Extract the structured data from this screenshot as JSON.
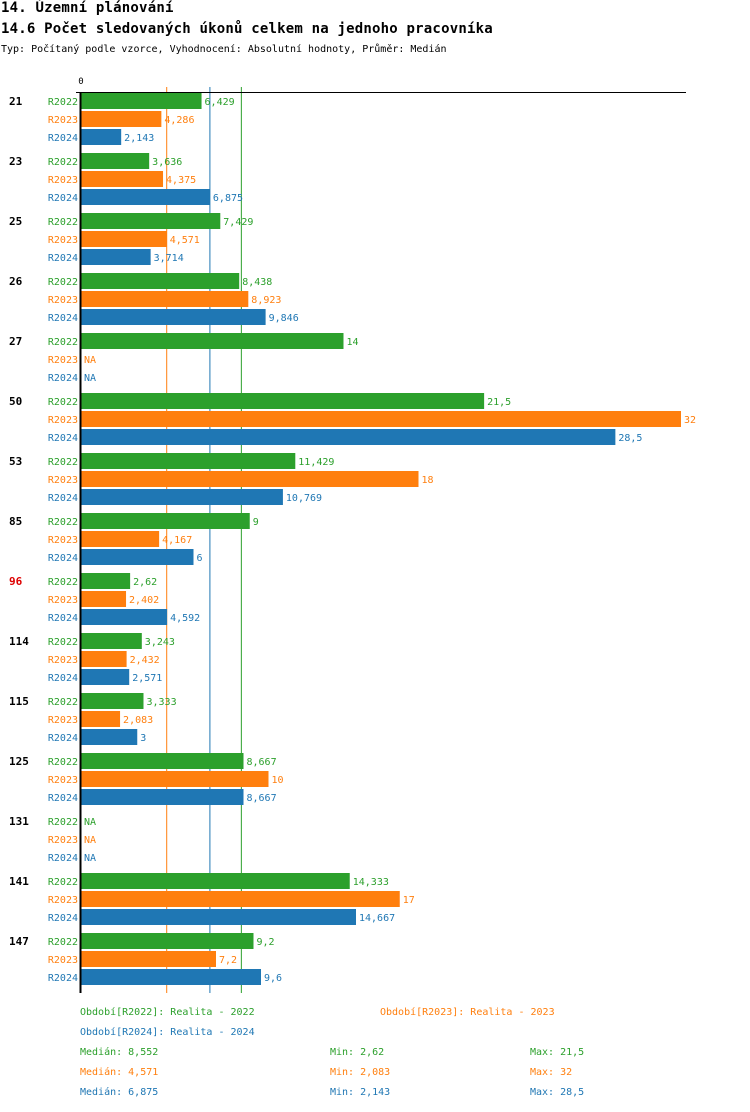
{
  "header": {
    "section_title": "14. Územní plánování",
    "chart_title": "14.6 Počet sledovaných úkonů celkem na jednoho pracovníka",
    "subtitle": "Typ: Počítaný podle vzorce, Vyhodnocení: Absolutní hodnoty, Průměr: Medián"
  },
  "colors": {
    "R2022": "#2ca02c",
    "R2023": "#ff7f0e",
    "R2024": "#1f77b4",
    "highlight": "#dd0000",
    "axis": "#000000"
  },
  "chart_data": {
    "type": "bar",
    "orientation": "horizontal",
    "title": "14.6 Počet sledovaných úkonů celkem na jednoho pracovníka",
    "xlabel": "",
    "ylabel": "",
    "x_tick_labels": [
      "0"
    ],
    "xlim": [
      0,
      32
    ],
    "grid": false,
    "categories": [
      "21",
      "23",
      "25",
      "26",
      "27",
      "50",
      "53",
      "85",
      "96",
      "114",
      "115",
      "125",
      "131",
      "141",
      "147"
    ],
    "highlighted_category": "96",
    "series": [
      {
        "name": "R2022",
        "values": [
          6.429,
          3.636,
          7.429,
          8.438,
          14,
          21.5,
          11.429,
          9,
          2.62,
          3.243,
          3.333,
          8.667,
          null,
          14.333,
          9.2
        ],
        "labels": [
          "6,429",
          "3,636",
          "7,429",
          "8,438",
          "14",
          "21,5",
          "11,429",
          "9",
          "2,62",
          "3,243",
          "3,333",
          "8,667",
          "NA",
          "14,333",
          "9,2"
        ]
      },
      {
        "name": "R2023",
        "values": [
          4.286,
          4.375,
          4.571,
          8.923,
          null,
          32,
          18,
          4.167,
          2.402,
          2.432,
          2.083,
          10,
          null,
          17,
          7.2
        ],
        "labels": [
          "4,286",
          "4,375",
          "4,571",
          "8,923",
          "NA",
          "32",
          "18",
          "4,167",
          "2,402",
          "2,432",
          "2,083",
          "10",
          "NA",
          "17",
          "7,2"
        ]
      },
      {
        "name": "R2024",
        "values": [
          2.143,
          6.875,
          3.714,
          9.846,
          null,
          28.5,
          10.769,
          6,
          4.592,
          2.571,
          3,
          8.667,
          null,
          14.667,
          9.6
        ],
        "labels": [
          "2,143",
          "6,875",
          "3,714",
          "9,846",
          "NA",
          "28,5",
          "10,769",
          "6",
          "4,592",
          "2,571",
          "3",
          "8,667",
          "NA",
          "14,667",
          "9,6"
        ]
      }
    ],
    "reference_lines": [
      {
        "series": "R2023",
        "type": "median",
        "value": 4.571
      },
      {
        "series": "R2024",
        "type": "median",
        "value": 6.875
      },
      {
        "series": "R2022",
        "type": "median",
        "value": 8.552
      }
    ],
    "legend": [
      {
        "series": "R2022",
        "text": "Období[R2022]: Realita - 2022"
      },
      {
        "series": "R2023",
        "text": "Období[R2023]: Realita - 2023"
      },
      {
        "series": "R2024",
        "text": "Období[R2024]: Realita - 2024"
      }
    ],
    "legend_position": "bottom",
    "stats": [
      {
        "series": "R2022",
        "median": "Medián: 8,552",
        "min": "Min: 2,62",
        "max": "Max: 21,5"
      },
      {
        "series": "R2023",
        "median": "Medián: 4,571",
        "min": "Min: 2,083",
        "max": "Max: 32"
      },
      {
        "series": "R2024",
        "median": "Medián: 6,875",
        "min": "Min: 2,143",
        "max": "Max: 28,5"
      }
    ]
  }
}
